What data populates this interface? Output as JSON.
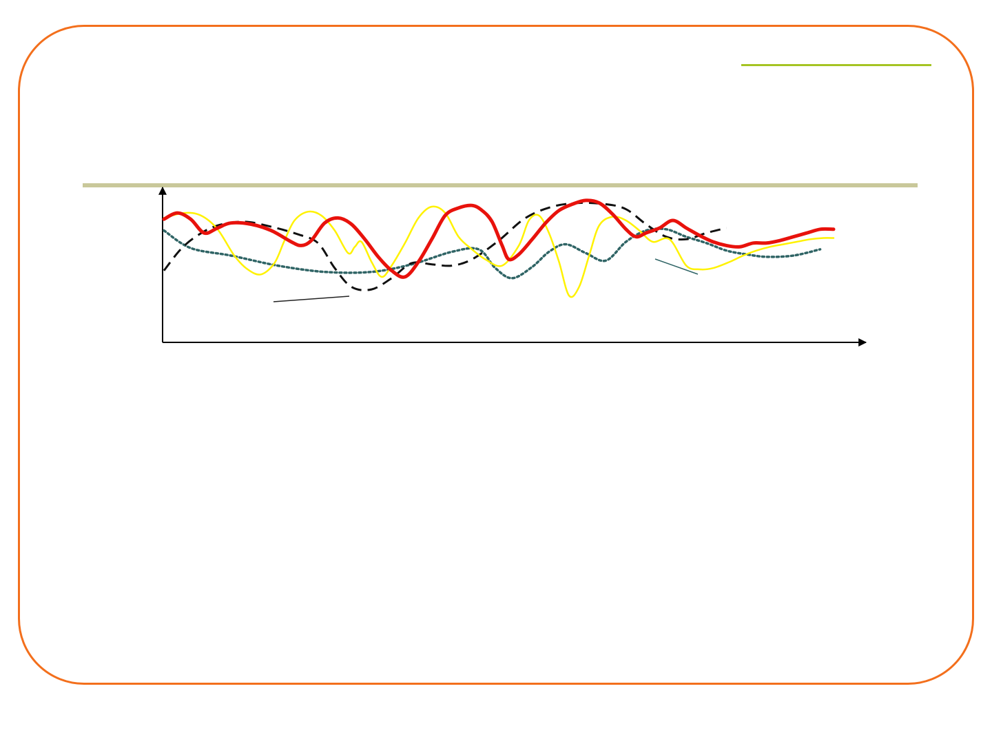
{
  "slide": {
    "frame_color": "#f36f1c",
    "accent_rule_color": "#a5c423",
    "title_rule_color": "#c9c89a"
  },
  "chart_data": {
    "type": "line",
    "title": "",
    "xlabel": "",
    "ylabel": "",
    "xlim": [
      0,
      100
    ],
    "ylim": [
      0,
      100
    ],
    "grid": false,
    "legend": "none",
    "series": [
      {
        "color": "#2f6465",
        "style": "dotted",
        "x": [
          0,
          4,
          10,
          17,
          24,
          31,
          37,
          43,
          47,
          49.5,
          52,
          55,
          57.5,
          60,
          63,
          66,
          69,
          72,
          75,
          78,
          81,
          84,
          87,
          90,
          94,
          98
        ],
        "y": [
          70,
          56,
          50,
          42,
          37,
          37,
          43,
          53,
          55,
          40,
          32,
          41,
          53,
          59,
          52,
          46,
          61,
          70,
          71,
          65,
          60,
          54,
          51,
          49,
          50,
          55
        ]
      },
      {
        "color": "#111111",
        "style": "dashed",
        "x": [
          0,
          2.5,
          5,
          8,
          12,
          16,
          20,
          23,
          25.5,
          28,
          31,
          34,
          37,
          40,
          43,
          46,
          50,
          54,
          58,
          62,
          66,
          69,
          72,
          75,
          78,
          81,
          84
        ],
        "y": [
          38,
          55,
          66,
          74,
          77,
          73,
          67,
          60,
          40,
          25,
          23,
          32,
          44,
          43,
          42,
          47,
          62,
          80,
          89,
          92,
          91,
          87,
          75,
          65,
          63,
          68,
          72
        ]
      },
      {
        "color": "#fff200",
        "style": "solid",
        "x": [
          0,
          3,
          5.5,
          8,
          10.5,
          12.5,
          14.5,
          16.5,
          18,
          19.5,
          21.5,
          23.5,
          25.5,
          27.5,
          28.5,
          29.5,
          31,
          32.5,
          34,
          36,
          38,
          40,
          42,
          44,
          46,
          48,
          50.5,
          53,
          54.5,
          56,
          57.5,
          59,
          60.5,
          62,
          63.5,
          65,
          67,
          69,
          71,
          73,
          75.5,
          78,
          80,
          82,
          84.5,
          86.5,
          88.5,
          90.5,
          92.5,
          94.5,
          96.5,
          98.5,
          100
        ],
        "y": [
          80,
          84,
          82,
          71,
          50,
          39,
          35,
          44,
          62,
          78,
          85,
          82,
          70,
          52,
          57,
          61,
          45,
          33,
          42,
          60,
          80,
          89,
          84,
          65,
          55,
          47,
          42,
          58,
          78,
          82,
          68,
          45,
          18,
          25,
          50,
          74,
          81,
          78,
          70,
          61,
          63,
          42,
          39,
          40,
          45,
          50,
          54,
          57,
          59,
          61,
          63,
          64,
          64
        ]
      },
      {
        "color": "#e8120c",
        "style": "solid-thick",
        "x": [
          0,
          2,
          4,
          6,
          8,
          10,
          13,
          16,
          19,
          20.5,
          22,
          24,
          26,
          28,
          30,
          32,
          34,
          36,
          38,
          40,
          42,
          44,
          46,
          47.5,
          49,
          50.5,
          51.5,
          53,
          55,
          57,
          59,
          61,
          63,
          65,
          67,
          69,
          70.5,
          72,
          74,
          76,
          78,
          80,
          82,
          84,
          86,
          88,
          90,
          92,
          94,
          96,
          98,
          100
        ],
        "y": [
          79,
          84,
          79,
          68,
          72,
          76,
          75,
          70,
          61,
          58,
          62,
          76,
          80,
          75,
          63,
          49,
          38,
          33,
          45,
          63,
          82,
          88,
          90,
          86,
          77,
          58,
          47,
          51,
          63,
          76,
          86,
          91,
          94,
          92,
          83,
          71,
          65,
          68,
          72,
          78,
          72,
          66,
          61,
          58,
          57,
          60,
          60,
          62,
          65,
          68,
          71,
          71
        ]
      }
    ]
  }
}
